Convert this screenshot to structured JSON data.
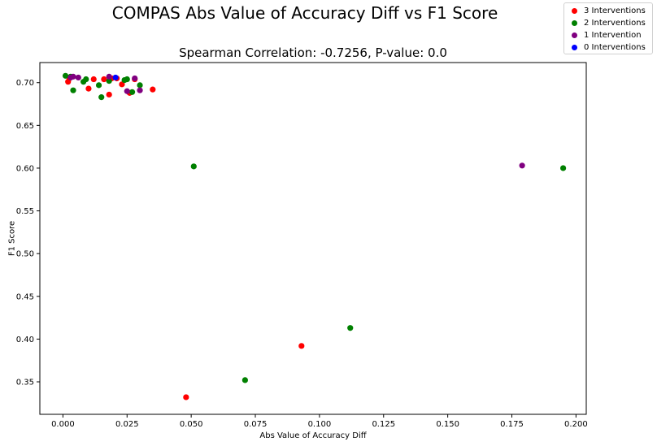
{
  "figure": {
    "suptitle": "COMPAS Abs Value of Accuracy Diff vs F1 Score"
  },
  "chart_data": {
    "type": "scatter",
    "title": "Spearman Correlation: -0.7256, P-value: 0.0",
    "xlabel": "Abs Value of Accuracy Diff",
    "ylabel": "F1 Score",
    "xlim": [
      -0.009,
      0.204
    ],
    "ylim": [
      0.312,
      0.7235
    ],
    "x_ticks": [
      "0.000",
      "0.025",
      "0.050",
      "0.075",
      "0.100",
      "0.125",
      "0.150",
      "0.175",
      "0.200"
    ],
    "y_ticks": [
      "0.35",
      "0.40",
      "0.45",
      "0.50",
      "0.55",
      "0.60",
      "0.65",
      "0.70"
    ],
    "grid": false,
    "legend_position": "top-right",
    "series": [
      {
        "name": "3 Interventions",
        "color": "#ff0000",
        "points": [
          [
            0.002,
            0.701
          ],
          [
            0.0025,
            0.705
          ],
          [
            0.01,
            0.693
          ],
          [
            0.012,
            0.704
          ],
          [
            0.016,
            0.704
          ],
          [
            0.018,
            0.686
          ],
          [
            0.019,
            0.705
          ],
          [
            0.021,
            0.705
          ],
          [
            0.023,
            0.698
          ],
          [
            0.026,
            0.688
          ],
          [
            0.028,
            0.704
          ],
          [
            0.035,
            0.692
          ],
          [
            0.048,
            0.332
          ],
          [
            0.093,
            0.392
          ]
        ]
      },
      {
        "name": "2 Interventions",
        "color": "#008000",
        "points": [
          [
            0.001,
            0.708
          ],
          [
            0.003,
            0.707
          ],
          [
            0.004,
            0.691
          ],
          [
            0.008,
            0.701
          ],
          [
            0.009,
            0.704
          ],
          [
            0.014,
            0.697
          ],
          [
            0.015,
            0.683
          ],
          [
            0.018,
            0.702
          ],
          [
            0.024,
            0.703
          ],
          [
            0.025,
            0.704
          ],
          [
            0.027,
            0.689
          ],
          [
            0.03,
            0.697
          ],
          [
            0.051,
            0.602
          ],
          [
            0.071,
            0.352
          ],
          [
            0.112,
            0.413
          ],
          [
            0.195,
            0.6
          ]
        ]
      },
      {
        "name": "1 Intervention",
        "color": "#800080",
        "points": [
          [
            0.003,
            0.706
          ],
          [
            0.004,
            0.707
          ],
          [
            0.006,
            0.706
          ],
          [
            0.018,
            0.707
          ],
          [
            0.025,
            0.69
          ],
          [
            0.028,
            0.705
          ],
          [
            0.03,
            0.691
          ],
          [
            0.179,
            0.603
          ]
        ]
      },
      {
        "name": "0 Interventions",
        "color": "#0000ff",
        "points": [
          [
            0.0205,
            0.706
          ]
        ]
      }
    ]
  }
}
